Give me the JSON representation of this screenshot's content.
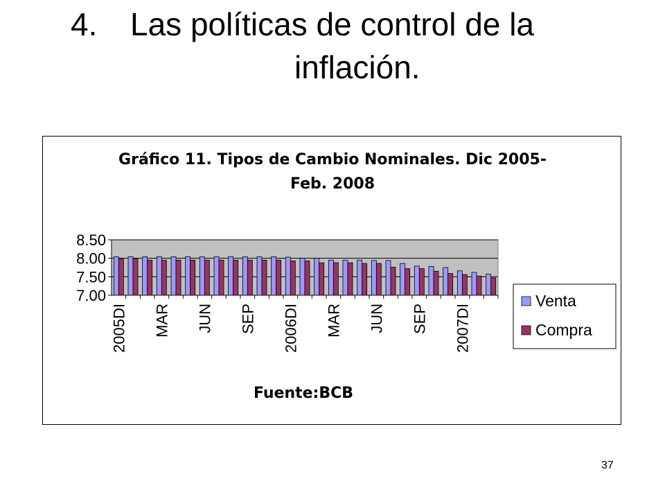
{
  "slide": {
    "number": "4.",
    "title_line1": "Las políticas de control de la",
    "title_line2": "inflación.",
    "page_number": "37"
  },
  "chart_data": {
    "type": "bar",
    "title_line1": "Gráfico 11. Tipos de Cambio Nominales. Dic 2005-",
    "title_line2": "Feb. 2008",
    "source": "Fuente:BCB",
    "xlabel": "",
    "ylabel": "",
    "ylim": [
      7.0,
      8.5
    ],
    "yticks": [
      "8.50",
      "8.00",
      "7.50",
      "7.00"
    ],
    "ytick_values": [
      8.5,
      8.0,
      7.5,
      7.0
    ],
    "grid": true,
    "legend_position": "right",
    "categories": [
      "2005DI",
      "",
      "",
      "MAR",
      "",
      "",
      "JUN",
      "",
      "",
      "SEP",
      "",
      "",
      "2006DI",
      "",
      "",
      "MAR",
      "",
      "",
      "JUN",
      "",
      "",
      "SEP",
      "",
      "",
      "2007DI",
      "",
      ""
    ],
    "series": [
      {
        "name": "Venta",
        "color": "#9999ff",
        "values": [
          8.04,
          8.04,
          8.04,
          8.04,
          8.04,
          8.04,
          8.04,
          8.04,
          8.04,
          8.04,
          8.04,
          8.04,
          8.03,
          8.0,
          8.0,
          7.95,
          7.95,
          7.95,
          7.94,
          7.94,
          7.86,
          7.79,
          7.78,
          7.75,
          7.66,
          7.62,
          7.57
        ]
      },
      {
        "name": "Compra",
        "color": "#993366",
        "values": [
          7.98,
          7.98,
          7.95,
          7.95,
          7.95,
          7.95,
          7.95,
          7.95,
          7.95,
          7.95,
          7.95,
          7.95,
          7.93,
          7.93,
          7.88,
          7.88,
          7.88,
          7.86,
          7.86,
          7.76,
          7.72,
          7.72,
          7.65,
          7.59,
          7.56,
          7.52,
          7.47
        ]
      }
    ],
    "colors": {
      "plot_background": "#c0c0c0",
      "axis": "#000000"
    }
  }
}
